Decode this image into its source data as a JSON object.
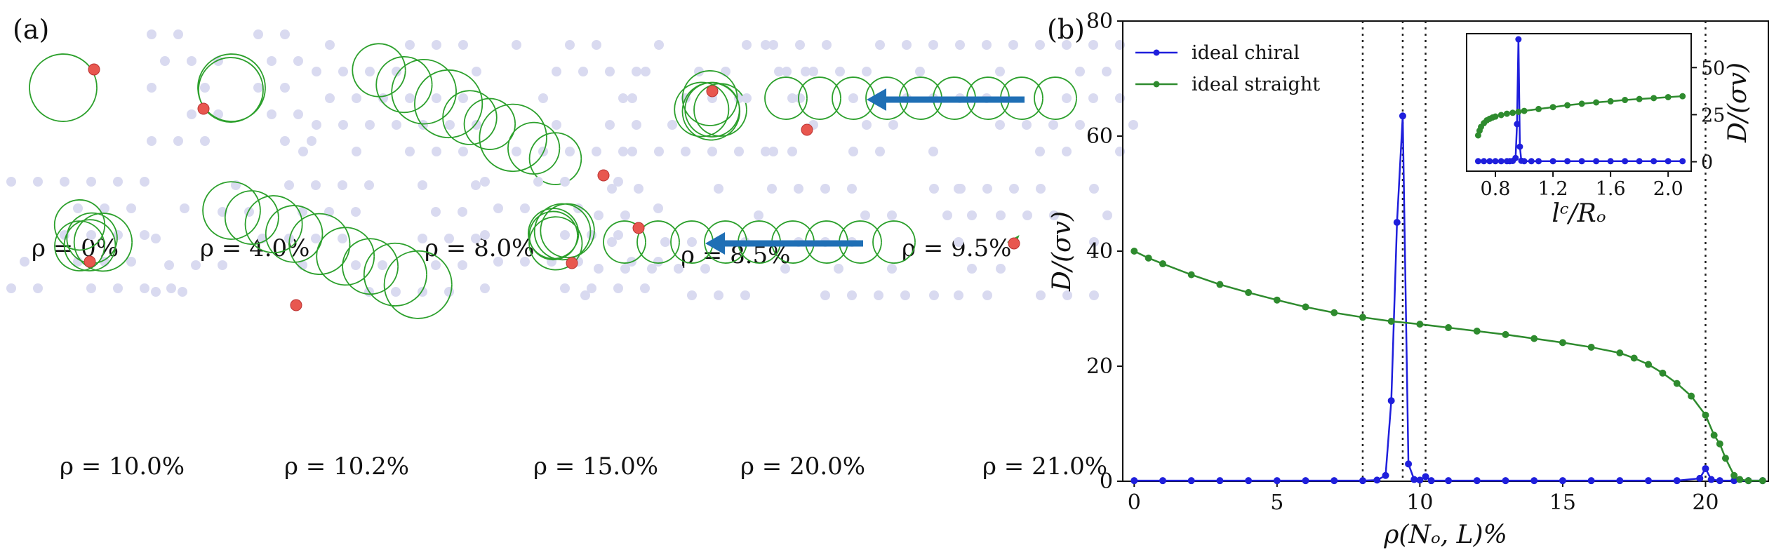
{
  "panel_a": {
    "label": "(a)",
    "snapshots": [
      {
        "label": "ρ = 0%",
        "pattern": "circle"
      },
      {
        "label": "ρ = 4.0%",
        "pattern": "circle"
      },
      {
        "label": "ρ = 8.0%",
        "pattern": "random-walk"
      },
      {
        "label": "ρ = 8.5%",
        "pattern": "confined"
      },
      {
        "label": "ρ = 9.5%",
        "pattern": "drift-left"
      },
      {
        "label": "ρ = 10.0%",
        "pattern": "confined"
      },
      {
        "label": "ρ = 10.2%",
        "pattern": "random-walk"
      },
      {
        "label": "ρ = 15.0%",
        "pattern": "confined"
      },
      {
        "label": "ρ = 20.0%",
        "pattern": "drift-left"
      },
      {
        "label": "ρ = 21.0%",
        "pattern": "trapped"
      }
    ],
    "colors": {
      "trajectory": "#2ca02c",
      "particle": "#e8574f",
      "obstacle": "#d9daf0",
      "arrow": "#1f6fb5"
    }
  },
  "panel_b": {
    "label": "(b)"
  },
  "chart_data": [
    {
      "type": "line",
      "xlabel": "ρ(Nₒ, L)%",
      "ylabel": "D/(σv)",
      "xlim": [
        -0.4,
        22.2
      ],
      "ylim": [
        0,
        80
      ],
      "xticks": [
        0,
        5,
        10,
        15,
        20
      ],
      "yticks": [
        0,
        20,
        40,
        60,
        80
      ],
      "vlines": [
        8.0,
        9.4,
        10.2,
        20.0
      ],
      "legend_position": "top-left",
      "series": [
        {
          "name": "ideal  chiral",
          "color": "#1f1fdc",
          "x": [
            0.0,
            1.0,
            2.0,
            3.0,
            4.0,
            5.0,
            6.0,
            7.0,
            8.0,
            8.5,
            8.8,
            9.0,
            9.2,
            9.4,
            9.6,
            9.8,
            10.0,
            10.2,
            10.4,
            11.0,
            12.0,
            13.0,
            14.0,
            15.0,
            16.0,
            17.0,
            18.0,
            19.0,
            19.8,
            20.0,
            20.2,
            20.5,
            21.0,
            21.5,
            22.0
          ],
          "y": [
            0.1,
            0.1,
            0.1,
            0.1,
            0.1,
            0.1,
            0.1,
            0.1,
            0.1,
            0.2,
            1.0,
            14.0,
            45.0,
            63.5,
            3.0,
            0.3,
            0.2,
            0.8,
            0.1,
            0.1,
            0.1,
            0.1,
            0.1,
            0.1,
            0.1,
            0.1,
            0.1,
            0.1,
            0.5,
            2.2,
            0.3,
            0.1,
            0.1,
            0.1,
            0.1
          ]
        },
        {
          "name": "ideal  straight",
          "color": "#2e8b2e",
          "x": [
            0.0,
            0.5,
            1.0,
            2.0,
            3.0,
            4.0,
            5.0,
            6.0,
            7.0,
            8.0,
            9.0,
            10.0,
            11.0,
            12.0,
            13.0,
            14.0,
            15.0,
            16.0,
            17.0,
            17.5,
            18.0,
            18.5,
            19.0,
            19.5,
            20.0,
            20.3,
            20.5,
            20.7,
            21.0,
            21.2,
            21.5,
            22.0
          ],
          "y": [
            40.0,
            38.8,
            37.8,
            35.9,
            34.2,
            32.8,
            31.5,
            30.3,
            29.3,
            28.5,
            27.8,
            27.3,
            26.7,
            26.1,
            25.5,
            24.8,
            24.1,
            23.3,
            22.3,
            21.4,
            20.3,
            18.8,
            17.0,
            14.8,
            11.5,
            8.0,
            6.5,
            4.0,
            1.0,
            0.3,
            0.1,
            0.1
          ]
        }
      ]
    },
    {
      "type": "line",
      "xlabel": "lᶜ/Rₒ",
      "ylabel": "D/(σv)",
      "xlim": [
        0.6,
        2.16
      ],
      "ylim": [
        -5,
        68
      ],
      "xticks": [
        0.8,
        1.2,
        1.6,
        2.0
      ],
      "yticks": [
        0,
        25,
        50
      ],
      "series": [
        {
          "name": "ideal  chiral",
          "color": "#1f1fdc",
          "x": [
            0.68,
            0.72,
            0.76,
            0.8,
            0.84,
            0.88,
            0.9,
            0.92,
            0.94,
            0.95,
            0.96,
            0.97,
            0.98,
            1.0,
            1.05,
            1.1,
            1.2,
            1.3,
            1.4,
            1.5,
            1.6,
            1.7,
            1.8,
            1.9,
            2.0,
            2.1
          ],
          "y": [
            0.3,
            0.3,
            0.3,
            0.3,
            0.3,
            0.3,
            0.3,
            0.4,
            2.0,
            20.0,
            65.0,
            8.0,
            0.5,
            0.3,
            0.3,
            0.3,
            0.3,
            0.3,
            0.3,
            0.3,
            0.3,
            0.3,
            0.3,
            0.3,
            0.3,
            0.3
          ]
        },
        {
          "name": "ideal  straight",
          "color": "#2e8b2e",
          "x": [
            0.68,
            0.69,
            0.7,
            0.72,
            0.74,
            0.76,
            0.78,
            0.8,
            0.84,
            0.88,
            0.92,
            0.96,
            1.0,
            1.1,
            1.2,
            1.3,
            1.4,
            1.5,
            1.6,
            1.7,
            1.8,
            1.9,
            2.0,
            2.1
          ],
          "y": [
            14.0,
            16.5,
            18.5,
            20.5,
            22.0,
            22.8,
            23.5,
            24.0,
            24.8,
            25.5,
            26.0,
            26.5,
            27.0,
            28.0,
            29.0,
            30.0,
            30.8,
            31.5,
            32.1,
            32.8,
            33.3,
            33.8,
            34.3,
            34.8
          ]
        }
      ]
    }
  ]
}
